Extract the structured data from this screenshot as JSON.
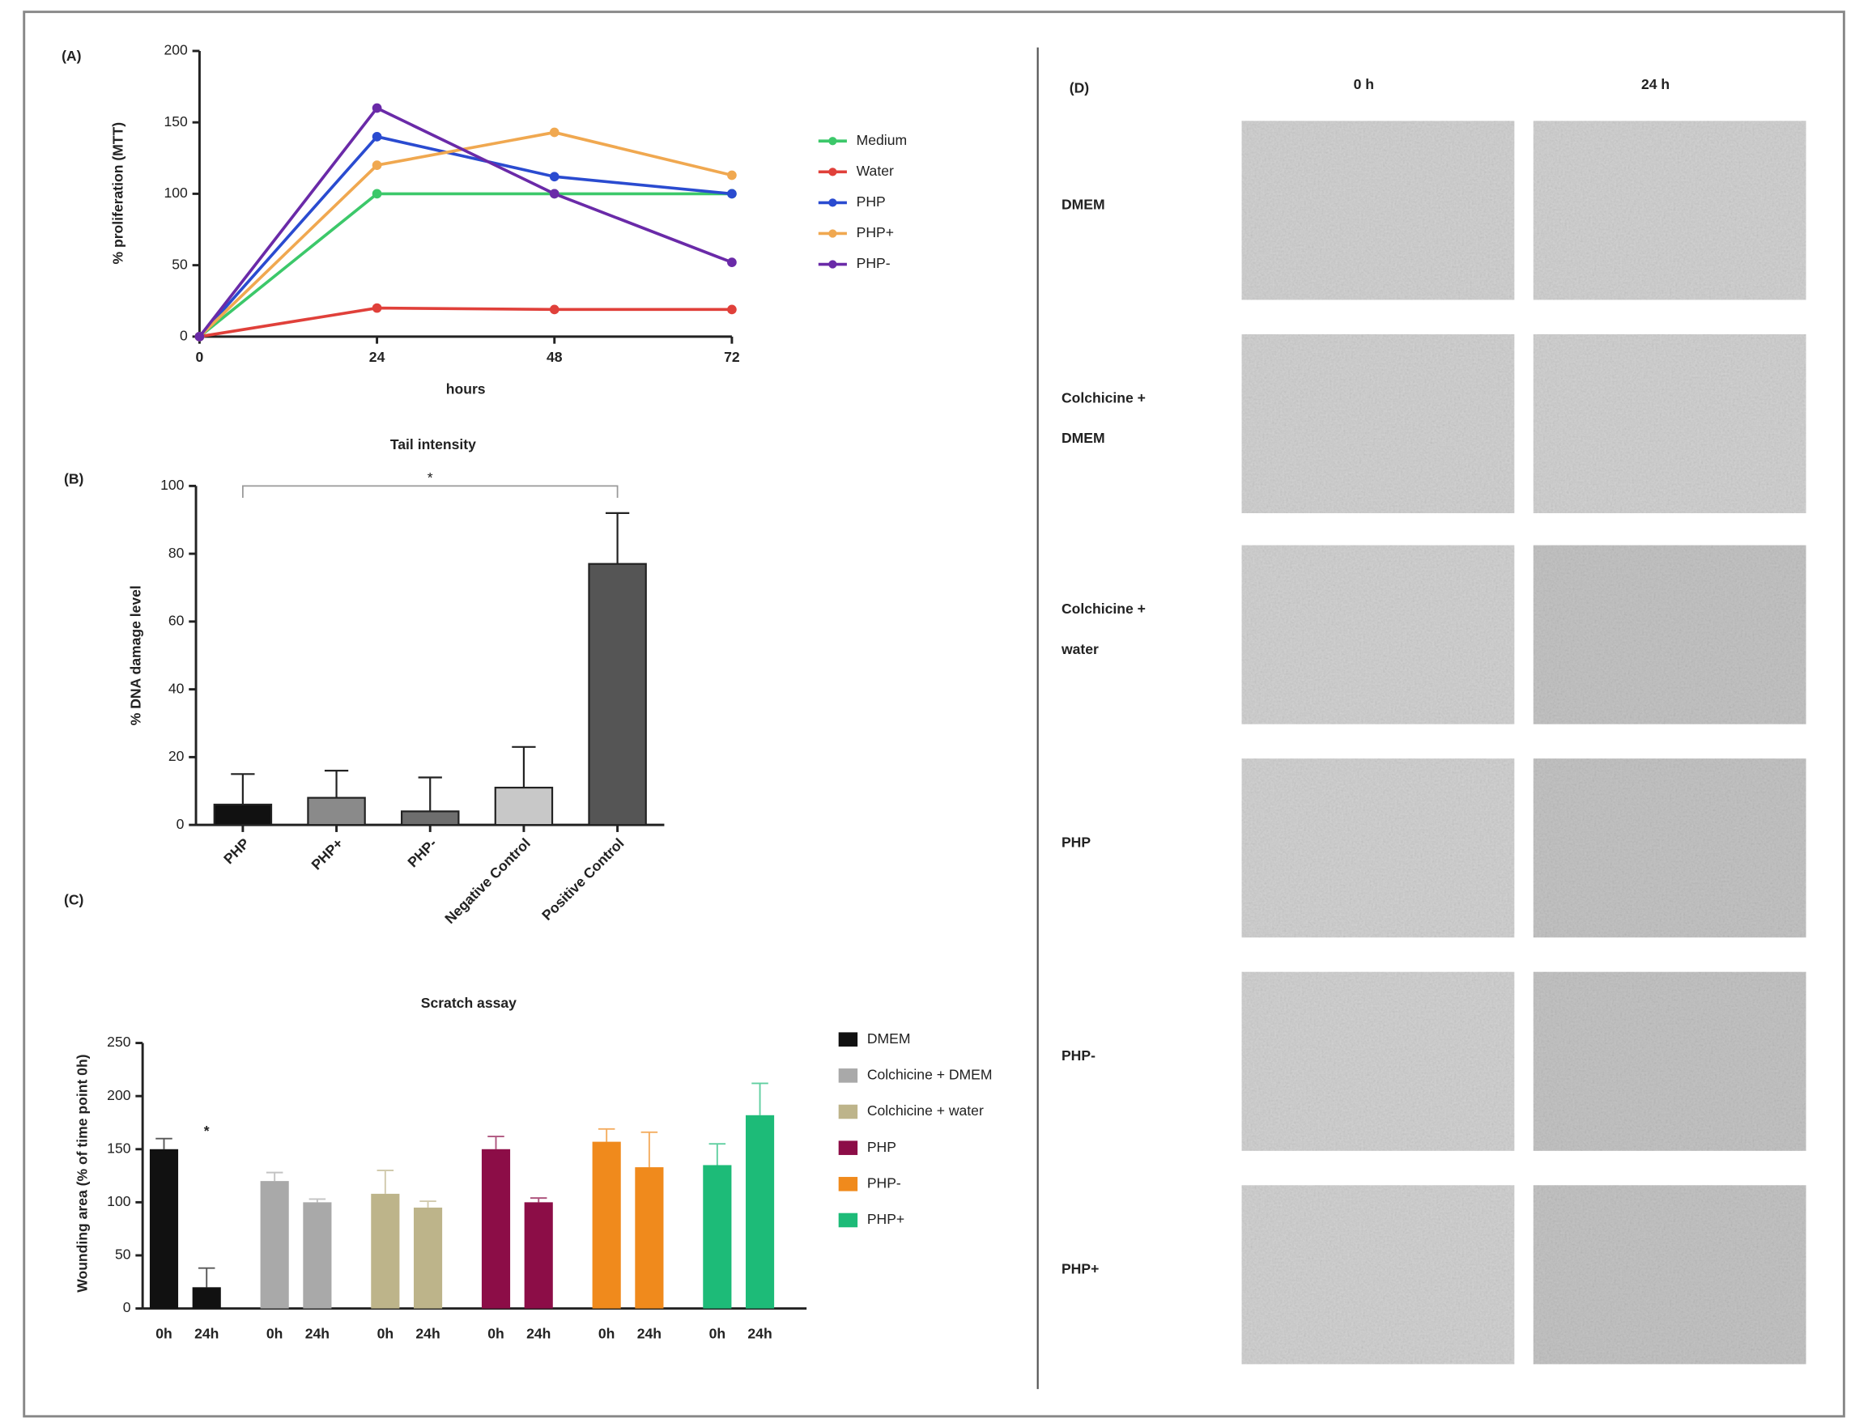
{
  "chart_data": [
    {
      "type": "line",
      "label": "(A)",
      "x_label": "hours",
      "y_label": "% proliferation (MTT)",
      "x": [
        0,
        24,
        48,
        72
      ],
      "xlim": [
        0,
        72
      ],
      "xticks": [
        0,
        24,
        48,
        72
      ],
      "ylim": [
        0,
        200
      ],
      "yticks": [
        0,
        50,
        100,
        150,
        200
      ],
      "series": [
        {
          "name": "Medium",
          "color": "#3cc86a",
          "values": [
            0,
            100,
            100,
            100
          ]
        },
        {
          "name": "Water",
          "color": "#e0403a",
          "values": [
            0,
            20,
            19,
            19
          ]
        },
        {
          "name": "PHP",
          "color": "#2a4bd0",
          "values": [
            0,
            140,
            112,
            100
          ]
        },
        {
          "name": "PHP+",
          "color": "#f0a850",
          "values": [
            0,
            120,
            143,
            113
          ]
        },
        {
          "name": "PHP-",
          "color": "#6a2aa8",
          "values": [
            0,
            160,
            100,
            52
          ]
        }
      ]
    },
    {
      "type": "bar",
      "label": "(B)",
      "title": "Tail intensity",
      "y_label": "% DNA damage level",
      "categories": [
        "PHP",
        "PHP+",
        "PHP-",
        "Negative Control",
        "Positive Control"
      ],
      "values": [
        6,
        8,
        4,
        11,
        77
      ],
      "errors": [
        9,
        8,
        10,
        12,
        15
      ],
      "colors": [
        "#111111",
        "#8a8a8a",
        "#6e6e6e",
        "#c8c8c8",
        "#555555"
      ],
      "ylim": [
        0,
        100
      ],
      "yticks": [
        0,
        20,
        40,
        60,
        80,
        100
      ],
      "annotation": "*"
    },
    {
      "type": "grouped_bar",
      "label": "(C)",
      "title": "Scratch assay",
      "y_label": "Wounding area (% of time point 0h)",
      "categories": [
        "0h",
        "24h"
      ],
      "series": [
        {
          "name": "DMEM",
          "color": "#111111",
          "values": [
            150,
            20
          ],
          "errors": [
            10,
            18
          ]
        },
        {
          "name": "Colchicine + DMEM",
          "color": "#a9a9a9",
          "values": [
            120,
            100
          ],
          "errors": [
            8,
            3
          ]
        },
        {
          "name": "Colchicine + water",
          "color": "#bdb48a",
          "values": [
            108,
            95
          ],
          "errors": [
            22,
            6
          ]
        },
        {
          "name": "PHP",
          "color": "#8c0d47",
          "values": [
            150,
            100
          ],
          "errors": [
            12,
            4
          ]
        },
        {
          "name": "PHP-",
          "color": "#f08a1c",
          "values": [
            157,
            133
          ],
          "errors": [
            12,
            33
          ]
        },
        {
          "name": "PHP+",
          "color": "#1dbb78",
          "values": [
            135,
            182
          ],
          "errors": [
            20,
            30
          ]
        }
      ],
      "ylim": [
        0,
        250
      ],
      "yticks": [
        0,
        50,
        100,
        150,
        200,
        250
      ],
      "annotation": "*"
    }
  ],
  "image_panel": {
    "label": "(D)",
    "columns": [
      "0 h",
      "24 h"
    ],
    "rows": [
      [
        "DMEM"
      ],
      [
        "Colchicine +",
        "DMEM"
      ],
      [
        "Colchicine +",
        "water"
      ],
      [
        "PHP"
      ],
      [
        "PHP-"
      ],
      [
        "PHP+"
      ]
    ]
  }
}
